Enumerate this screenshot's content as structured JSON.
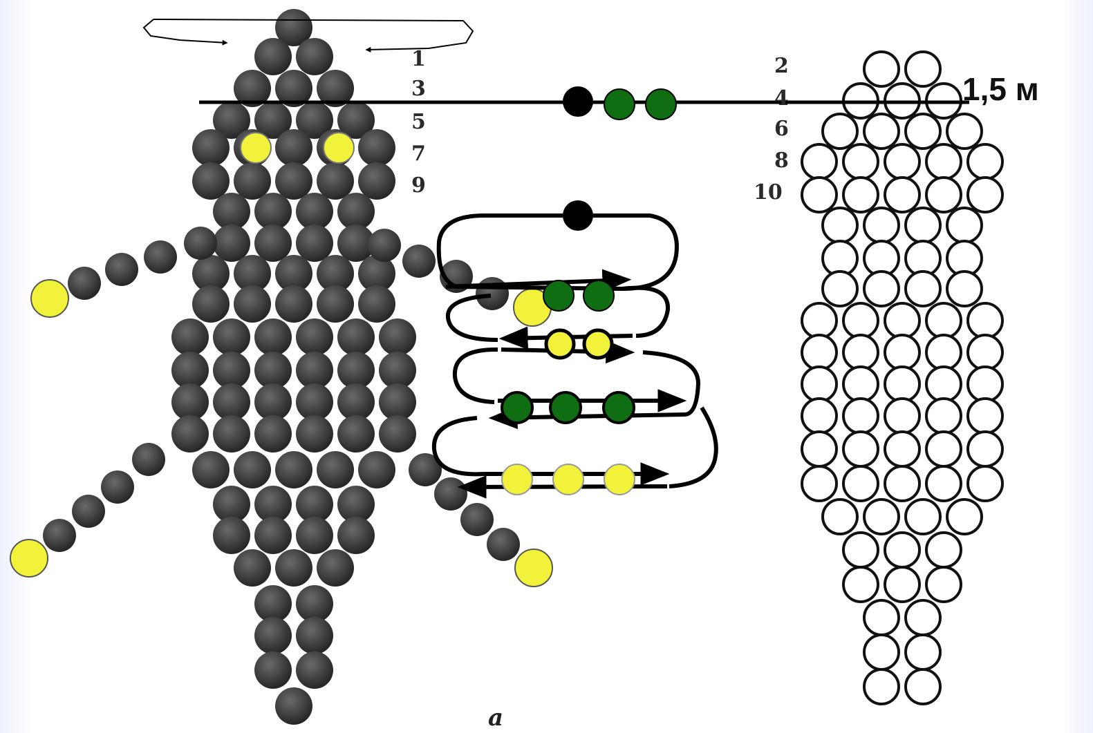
{
  "row_numbers_left": [
    "1",
    "3",
    "5",
    "7",
    "9"
  ],
  "row_numbers_right": [
    "2",
    "4",
    "6",
    "8",
    "10"
  ],
  "length_label": "1,5 м",
  "caption": "а",
  "colors": {
    "dark_bead": "#3a3a3a",
    "eye_bead": "#f2f23a",
    "green_bead": "#0f6e12",
    "black_bead": "#000000",
    "outline_bead": "#ffffff",
    "wire": "#000000"
  }
}
